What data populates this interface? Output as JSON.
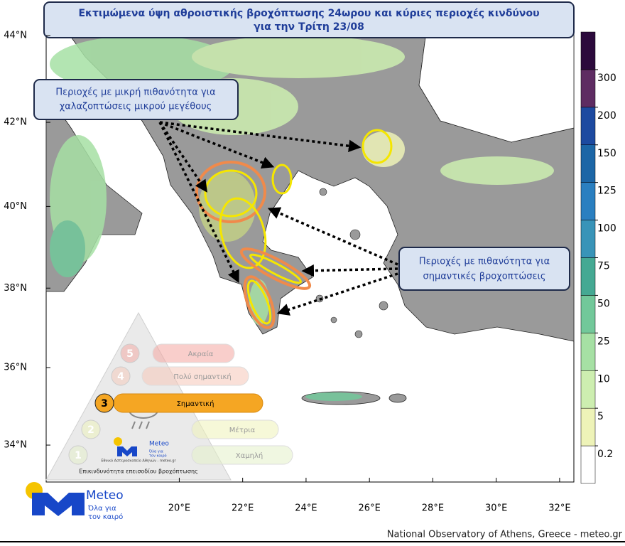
{
  "header": {
    "title_lines": [
      "Εκτιμώμενα ύψη αθροιστικής βροχόπτωσης 24ωρου και κύριες περιοχές κινδύνου",
      "για την Τρίτη 23/08"
    ]
  },
  "map": {
    "projection": "mercator",
    "xlim": [
      15.8,
      32.45
    ],
    "ylim": [
      33.03,
      44.08
    ],
    "xticks": [
      {
        "value": 20,
        "label": "20°E"
      },
      {
        "value": 22,
        "label": "22°E"
      },
      {
        "value": 24,
        "label": "24°E"
      },
      {
        "value": 26,
        "label": "26°E"
      },
      {
        "value": 28,
        "label": "28°E"
      },
      {
        "value": 30,
        "label": "30°E"
      },
      {
        "value": 32,
        "label": "32°E"
      }
    ],
    "yticks": [
      {
        "value": 34,
        "label": "34°N"
      },
      {
        "value": 36,
        "label": "36°N"
      },
      {
        "value": 38,
        "label": "38°N"
      },
      {
        "value": 40,
        "label": "40°N"
      },
      {
        "value": 42,
        "label": "42°N"
      },
      {
        "value": 44,
        "label": "44°N"
      }
    ]
  },
  "callouts": [
    {
      "text_lines": [
        "Περιοχές με μικρή πιθανότητα για",
        "χαλαζοπτώσεις μικρού μεγέθους"
      ]
    },
    {
      "text_lines": [
        "Περιοχές με πιθανότητα για",
        "σημαντικές βροχοπτώσεις"
      ]
    }
  ],
  "colorbar": {
    "levels": [
      0.2,
      5,
      10,
      25,
      50,
      75,
      100,
      125,
      150,
      200,
      300
    ],
    "colors": [
      "#ffffff",
      "#eef3b8",
      "#cdeeb0",
      "#a6e0a4",
      "#72c89a",
      "#45a993",
      "#3994b8",
      "#2a7fc0",
      "#1c66a6",
      "#1d4aa0",
      "#5e2c62",
      "#2c0a3c"
    ]
  },
  "risk_scale": {
    "title": "Επικινδυνότητα επεισοδίου βροχόπτωσης",
    "source": "Εθνικό Αστεροσκοπείο Αθηνών - meteo.gr",
    "active": 3,
    "levels": [
      {
        "number": 5,
        "label": "Ακραία"
      },
      {
        "number": 4,
        "label": "Πολύ σημαντική"
      },
      {
        "number": 3,
        "label": "Σημαντική"
      },
      {
        "number": 2,
        "label": "Μέτρια"
      },
      {
        "number": 1,
        "label": "Χαμηλή"
      }
    ]
  },
  "logo": {
    "name": "Meteo",
    "tagline_lines": [
      "Όλα για",
      "τον καιρό"
    ]
  },
  "footer": "National Observatory of Athens, Greece - meteo.gr"
}
